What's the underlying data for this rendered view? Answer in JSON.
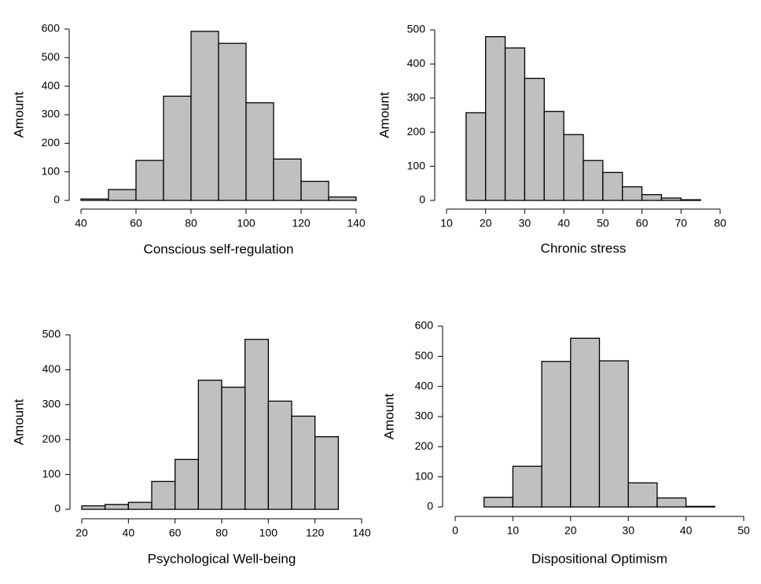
{
  "chart_data": [
    {
      "type": "histogram",
      "x_label": "Conscious self-regulation",
      "y_label": "Amount",
      "color": "#c0c0c0",
      "bins": [
        40,
        50,
        60,
        70,
        80,
        90,
        100,
        110,
        120,
        130,
        140
      ],
      "values": [
        5,
        38,
        140,
        365,
        592,
        550,
        342,
        145,
        67,
        12
      ],
      "xlim": [
        40,
        140
      ],
      "ylim": [
        0,
        600
      ],
      "xticks": [
        40,
        60,
        80,
        100,
        120,
        140
      ],
      "yticks": [
        0,
        100,
        200,
        300,
        400,
        500,
        600
      ]
    },
    {
      "type": "histogram",
      "x_label": "Chronic stress",
      "y_label": "Amount",
      "color": "#c0c0c0",
      "bins": [
        15,
        20,
        25,
        30,
        35,
        40,
        45,
        50,
        55,
        60,
        65,
        70,
        75
      ],
      "values": [
        257,
        480,
        447,
        358,
        261,
        193,
        117,
        82,
        40,
        17,
        7,
        2
      ],
      "xlim": [
        10,
        80
      ],
      "ylim": [
        0,
        500
      ],
      "xticks": [
        10,
        20,
        30,
        40,
        50,
        60,
        70,
        80
      ],
      "yticks": [
        0,
        100,
        200,
        300,
        400,
        500
      ]
    },
    {
      "type": "histogram",
      "x_label": "Psychological Well-being",
      "y_label": "Amount",
      "color": "#c0c0c0",
      "bins": [
        20,
        30,
        40,
        50,
        60,
        70,
        80,
        90,
        100,
        110,
        120,
        130
      ],
      "values": [
        10,
        14,
        20,
        80,
        143,
        370,
        350,
        487,
        310,
        267,
        208
      ],
      "xlim": [
        20,
        140
      ],
      "ylim": [
        0,
        500
      ],
      "xticks": [
        20,
        40,
        60,
        80,
        100,
        120,
        140
      ],
      "yticks": [
        0,
        100,
        200,
        300,
        400,
        500
      ]
    },
    {
      "type": "histogram",
      "x_label": "Dispositional Optimism",
      "y_label": "Amount",
      "color": "#c0c0c0",
      "bins": [
        5,
        10,
        15,
        20,
        25,
        30,
        35,
        40,
        45
      ],
      "values": [
        32,
        135,
        483,
        560,
        485,
        80,
        30,
        2
      ],
      "xlim": [
        0,
        50
      ],
      "ylim": [
        0,
        600
      ],
      "xticks": [
        0,
        10,
        20,
        30,
        40,
        50
      ],
      "yticks": [
        0,
        100,
        200,
        300,
        400,
        500,
        600
      ]
    }
  ]
}
